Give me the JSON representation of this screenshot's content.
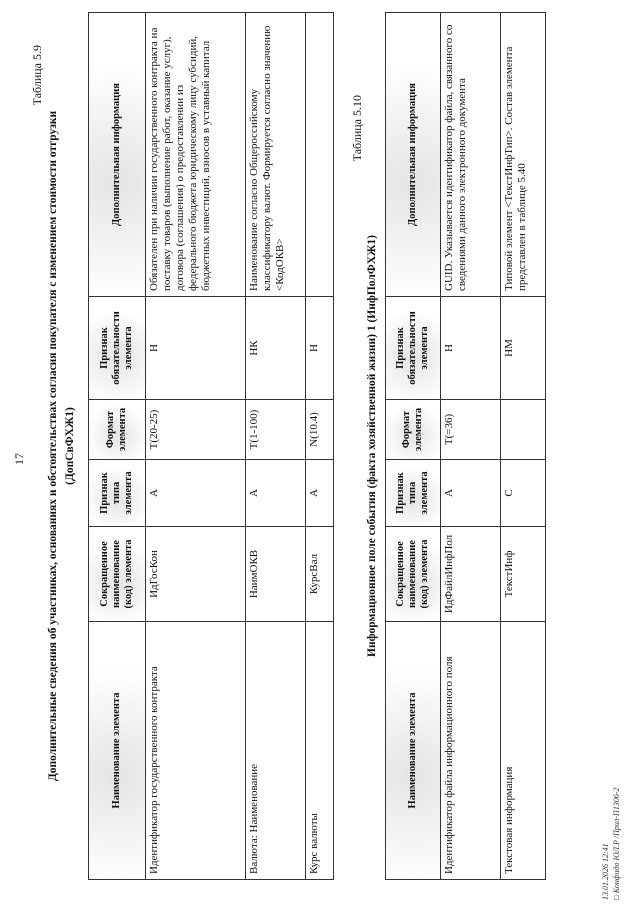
{
  "page_number": "17",
  "table1": {
    "caption": "Таблица 5.9",
    "title_line1": "Дополнительные сведения об участниках, основаниях и обстоятельствах согласия покупателя с изменением стоимости отгрузки",
    "title_line2": "(ДопСвФХЖ1)",
    "headers": [
      "Наименование элемента",
      "Сокращенное наименование (код) элемента",
      "Признак типа элемента",
      "Формат элемента",
      "Признак обязательности элемента",
      "Дополнительная информация"
    ],
    "rows": [
      [
        "Идентификатор государственного контракта",
        "ИдГосКон",
        "А",
        "T(20-25)",
        "Н",
        "Обязателен при наличии государственного контракта на поставку товаров (выполнение работ, оказание услуг), договора (соглашения) о предоставлении из федерального бюджета юридическому лицу субсидий, бюджетных инвестиций, взносов в уставный капитал"
      ],
      [
        "Валюта: Наименование",
        "НаимОКВ",
        "А",
        "T(1-100)",
        "НК",
        "Наименование согласно Общероссийскому классификатору валют. Формируется согласно значению <КодОКВ>"
      ],
      [
        "Курс валюты",
        "КурсВал",
        "А",
        "N(10.4)",
        "Н",
        ""
      ]
    ]
  },
  "table2": {
    "caption": "Таблица 5.10",
    "title": "Информационное поле события (факта хозяйственной жизни) 1 (ИнфПолФХЖ1)",
    "headers": [
      "Наименование элемента",
      "Сокращенное наименование (код) элемента",
      "Признак типа элемента",
      "Формат элемента",
      "Признак обязательности элемента",
      "Дополнительная информация"
    ],
    "rows": [
      [
        "Идентификатор файла информационного поля",
        "ИдФайлИнфПол",
        "А",
        "T(=36)",
        "Н",
        "GUID. Указывается идентификатор файла, связанного со сведениями данного электронного документа"
      ],
      [
        "Текстовая информация",
        "ТекстИнф",
        "С",
        "",
        "НМ",
        "Типовой элемент <ТекстИнфТип>. Состав элемента представлен в таблице 5.40"
      ]
    ]
  },
  "footer": {
    "timestamp": "13.01.2026 12:41",
    "doc_ref": "□ Конфидо ЮЛ.Р /Прил-П1306-2"
  }
}
